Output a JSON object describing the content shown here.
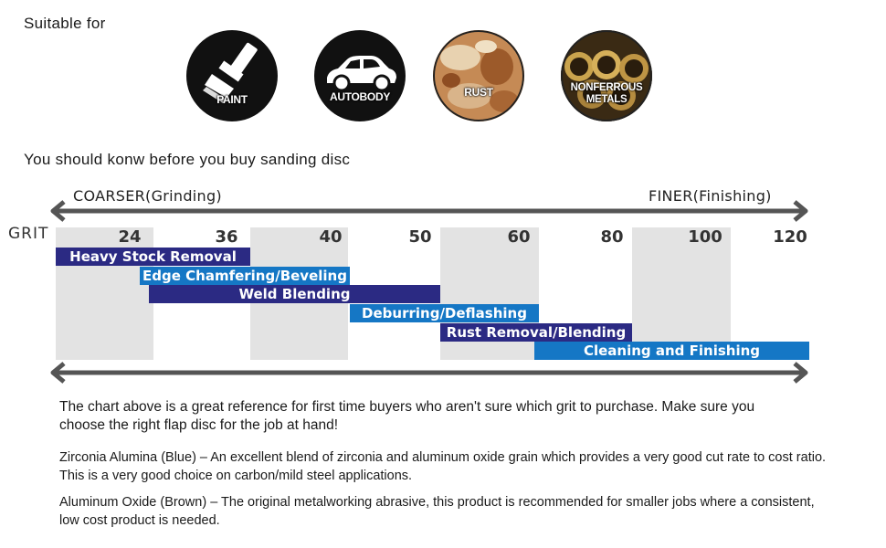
{
  "suitable_for": {
    "title": "Suitable for",
    "items": [
      {
        "label": "PAINT",
        "icon": "paint-brush-icon"
      },
      {
        "label": "AUTOBODY",
        "icon": "car-icon"
      },
      {
        "label": "RUST",
        "icon": "rust-texture-icon"
      },
      {
        "label": "NONFERROUS METALS",
        "icon": "metal-pipes-icon"
      }
    ]
  },
  "heading": "You should konw before you buy sanding disc",
  "colors": {
    "dark_blue": "#2b2a83",
    "light_blue": "#1577c5",
    "band": "#e3e3e3",
    "arrow": "#555555"
  },
  "chart_data": {
    "type": "bar",
    "left_arrow_label": "COARSER(Grinding)",
    "right_arrow_label": "FINER(Finishing)",
    "axis_label": "GRIT",
    "grit_ticks": [
      "24",
      "36",
      "40",
      "50",
      "60",
      "80",
      "100",
      "120"
    ],
    "bars": [
      {
        "label": "Heavy Stock Removal",
        "start": "24",
        "end": "36",
        "color": "dark_blue"
      },
      {
        "label": "Edge Chamfering/Beveling",
        "start": "36",
        "end": "40",
        "color": "light_blue"
      },
      {
        "label": "Weld Blending",
        "start": "36",
        "end": "50",
        "color": "dark_blue"
      },
      {
        "label": "Deburring/Deflashing",
        "start": "40",
        "end": "60",
        "color": "light_blue"
      },
      {
        "label": "Rust Removal/Blending",
        "start": "50",
        "end": "80",
        "color": "dark_blue"
      },
      {
        "label": "Cleaning and Finishing",
        "start": "60",
        "end": "120",
        "color": "light_blue"
      }
    ]
  },
  "notes": {
    "intro": "The chart above is a great reference for first time buyers who aren't sure which grit to purchase. Make sure you choose the right  flap disc for the job at hand!",
    "zirconia_title": "Zirconia Alumina (Blue) –",
    "zirconia_text": " An excellent blend of zirconia and aluminum oxide grain which provides a very good cut rate to cost ratio. This is a very good choice on carbon/mild steel applications.",
    "aluminum_title": "Aluminum Oxide (Brown)",
    "aluminum_text": " – The original metalworking abrasive, this product is recommended for smaller jobs where a consistent, low cost product is needed."
  }
}
